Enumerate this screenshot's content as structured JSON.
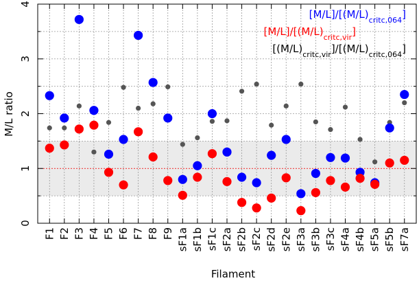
{
  "chart_data": {
    "type": "scatter",
    "xlabel": "Filament",
    "ylabel": "M/L ratio",
    "ylim": [
      0,
      4
    ],
    "yticks": [
      "0",
      "1",
      "2",
      "3",
      "4"
    ],
    "grid": true,
    "legend_position": "top-right",
    "categories": [
      "F1",
      "F2",
      "F3",
      "F4",
      "F5",
      "F6",
      "F7",
      "F8",
      "F9",
      "sF1a",
      "sF1b",
      "sF1c",
      "sF2a",
      "sF2b",
      "sF2c",
      "sF2d",
      "sF2e",
      "sF3a",
      "sF3b",
      "sF3c",
      "sF4a",
      "sF4b",
      "sF5a",
      "sF5b",
      "sF7a"
    ],
    "reference_line": 1,
    "shaded_band": [
      0.5,
      1.5
    ],
    "series": [
      {
        "legend_main": "[M/L]/[(M/L)",
        "legend_sub": "critc,064",
        "legend_end": "]",
        "color": "#0000ff",
        "marker": "large-dot",
        "values": [
          2.33,
          1.92,
          3.72,
          2.06,
          1.26,
          1.53,
          3.43,
          2.57,
          1.92,
          0.8,
          1.05,
          2.0,
          1.3,
          0.84,
          0.74,
          1.24,
          1.53,
          0.54,
          0.91,
          1.2,
          1.19,
          0.93,
          0.74,
          1.74,
          2.35
        ]
      },
      {
        "legend_main": "[M/L]/[(M/L)",
        "legend_sub": "critc,vir",
        "legend_end": "]",
        "color": "#ff0000",
        "marker": "large-dot",
        "values": [
          1.37,
          1.43,
          1.72,
          1.79,
          0.93,
          0.7,
          1.67,
          1.21,
          0.78,
          0.51,
          0.84,
          1.27,
          0.76,
          0.38,
          0.28,
          0.46,
          0.83,
          0.23,
          0.56,
          0.78,
          0.66,
          0.82,
          0.71,
          1.1,
          1.15
        ]
      },
      {
        "legend_main": "[(M/L)",
        "legend_sub": "critc,vir",
        "legend_mid": "]/[(M/L)",
        "legend_sub2": "critc,064",
        "legend_end": "]",
        "color": "#555555",
        "marker": "small-dot",
        "values": [
          1.74,
          1.74,
          2.14,
          1.3,
          1.84,
          2.48,
          2.1,
          2.18,
          2.49,
          1.44,
          1.56,
          1.86,
          1.87,
          2.41,
          2.54,
          1.79,
          2.14,
          2.54,
          1.85,
          1.71,
          2.12,
          1.53,
          1.12,
          1.84,
          2.2
        ]
      }
    ]
  }
}
